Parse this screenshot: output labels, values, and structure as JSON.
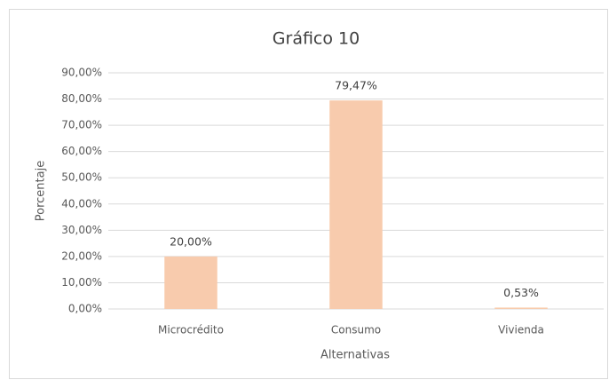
{
  "chart_data": {
    "type": "bar",
    "title": "Gráfico 10",
    "x_label": "Alternativas",
    "y_label": "Porcentaje",
    "categories": [
      "Microcrédito",
      "Consumo",
      "Vivienda"
    ],
    "values": [
      20,
      79.47,
      0.53
    ],
    "value_labels": [
      "20,00%",
      "79,47%",
      "0,53%"
    ],
    "color": "#f8cbad",
    "ylim": [
      0,
      90
    ],
    "yticks": [
      {
        "value": 0,
        "label": "0,00%"
      },
      {
        "value": 10,
        "label": "10,00%"
      },
      {
        "value": 20,
        "label": "20,00%"
      },
      {
        "value": 30,
        "label": "30,00%"
      },
      {
        "value": 40,
        "label": "40,00%"
      },
      {
        "value": 50,
        "label": "50,00%"
      },
      {
        "value": 60,
        "label": "60,00%"
      },
      {
        "value": 70,
        "label": "70,00%"
      },
      {
        "value": 80,
        "label": "80,00%"
      },
      {
        "value": 90,
        "label": "90,00%"
      }
    ],
    "grid": true
  }
}
